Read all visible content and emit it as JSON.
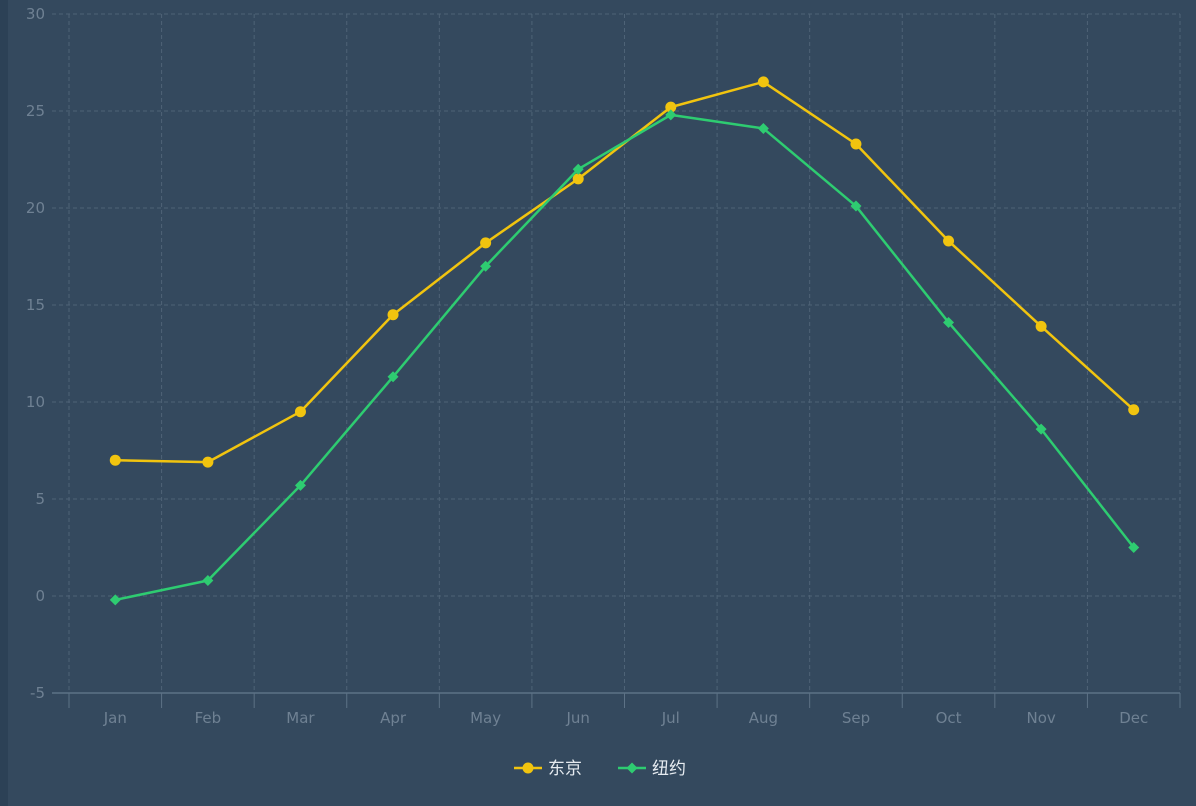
{
  "chart_data": {
    "type": "line",
    "categories": [
      "Jan",
      "Feb",
      "Mar",
      "Apr",
      "May",
      "Jun",
      "Jul",
      "Aug",
      "Sep",
      "Oct",
      "Nov",
      "Dec"
    ],
    "series": [
      {
        "name": "东京",
        "color": "#f1c40f",
        "marker": "circle",
        "values": [
          7.0,
          6.9,
          9.5,
          14.5,
          18.2,
          21.5,
          25.2,
          26.5,
          23.3,
          18.3,
          13.9,
          9.6
        ]
      },
      {
        "name": "纽约",
        "color": "#2ecc71",
        "marker": "diamond",
        "values": [
          -0.2,
          0.8,
          5.7,
          11.3,
          17.0,
          22.0,
          24.8,
          24.1,
          20.1,
          14.1,
          8.6,
          2.5
        ]
      }
    ],
    "ylim": [
      -5,
      30
    ],
    "yticks": [
      -5,
      0,
      5,
      10,
      15,
      20,
      25,
      30
    ],
    "title": "",
    "xlabel": "",
    "ylabel": "",
    "grid": true,
    "legend_position": "bottom-center",
    "colors": {
      "background": "#34495e",
      "grid": "#4e6377",
      "axis": "#5d7286",
      "tick_text": "#6f8193"
    }
  }
}
